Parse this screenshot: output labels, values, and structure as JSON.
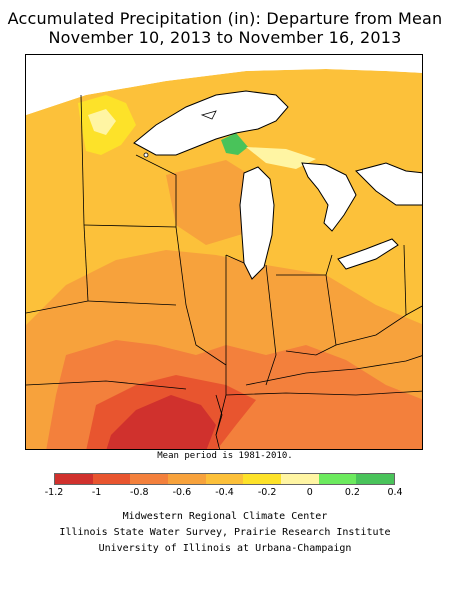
{
  "title": {
    "line1": "Accumulated Precipitation (in): Departure from Mean",
    "line2": "November 10, 2013 to November 16, 2013"
  },
  "note": "Mean period is 1981-2010.",
  "legend": {
    "ticks": [
      "-1.2",
      "-1",
      "-0.8",
      "-0.6",
      "-0.4",
      "-0.2",
      "0",
      "0.2",
      "0.4"
    ],
    "colors": [
      "#d0312d",
      "#e8552f",
      "#f3803c",
      "#f7a23c",
      "#fcc03a",
      "#fde229",
      "#fff5a3",
      "#6cea5e",
      "#49c35a"
    ]
  },
  "credits": {
    "line1": "Midwestern Regional Climate Center",
    "line2": "Illinois State Water Survey, Prairie Research Institute",
    "line3": "University of Illinois at Urbana-Champaign"
  },
  "map_colors": {
    "base": "#fcc13a",
    "light_yellow": "#fde229",
    "pale_yellow": "#fff5a3",
    "orange": "#f7a23c",
    "dark_orange": "#f3803c",
    "red_orange": "#e8552f",
    "red": "#d0312d",
    "green": "#49c35a",
    "light_green": "#6cea5e",
    "water": "#ffffff",
    "border": "#000000"
  }
}
